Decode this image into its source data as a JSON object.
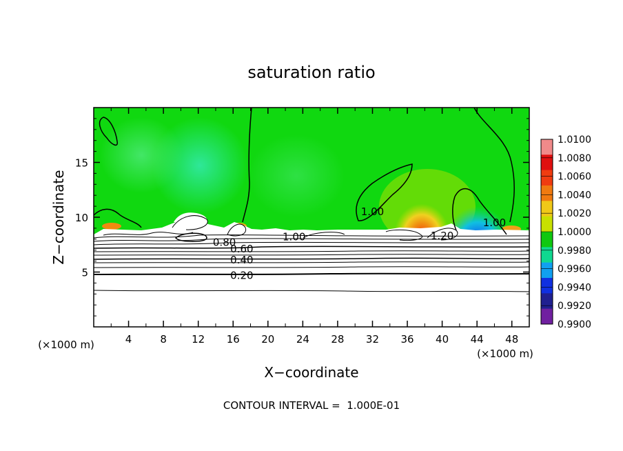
{
  "chart_data": {
    "type": "heatmap",
    "title": "saturation ratio",
    "xlabel": "X−coordinate",
    "ylabel": "Z−coordinate",
    "x_unit": "(×1000 m)",
    "x_unit_right": "(×1000 m)",
    "xlim": [
      0,
      50
    ],
    "ylim": [
      0,
      20
    ],
    "x_ticks": [
      {
        "v": 4,
        "label": "4"
      },
      {
        "v": 8,
        "label": "8"
      },
      {
        "v": 12,
        "label": "12"
      },
      {
        "v": 16,
        "label": "16"
      },
      {
        "v": 20,
        "label": "20"
      },
      {
        "v": 24,
        "label": "24"
      },
      {
        "v": 28,
        "label": "28"
      },
      {
        "v": 32,
        "label": "32"
      },
      {
        "v": 36,
        "label": "36"
      },
      {
        "v": 40,
        "label": "40"
      },
      {
        "v": 44,
        "label": "44"
      },
      {
        "v": 48,
        "label": "48"
      }
    ],
    "y_ticks": [
      {
        "v": 5,
        "label": "5"
      },
      {
        "v": 10,
        "label": "10"
      },
      {
        "v": 15,
        "label": "15"
      }
    ],
    "colorbar": {
      "min": 0.99,
      "max": 1.01,
      "levels": [
        "1.0100",
        "1.0080",
        "1.0060",
        "1.0040",
        "1.0020",
        "1.0000",
        "0.9980",
        "0.9960",
        "0.9940",
        "0.9920",
        "0.9900"
      ],
      "colors": [
        "#f08a8a",
        "#e01010",
        "#f03c10",
        "#f07a10",
        "#f0c818",
        "#c8e000",
        "#10c810",
        "#10d890",
        "#10a0f0",
        "#1030e0",
        "#202090",
        "#7020a0"
      ]
    },
    "contour_labels": [
      {
        "label": "0.20",
        "x": 17.0,
        "y": 4.7
      },
      {
        "label": "0.40",
        "x": 17.0,
        "y": 6.1
      },
      {
        "label": "0.60",
        "x": 17.0,
        "y": 7.1
      },
      {
        "label": "0.80",
        "x": 15.0,
        "y": 7.7
      },
      {
        "label": "1.00",
        "x": 23.0,
        "y": 8.2
      },
      {
        "label": "1.00",
        "x": 32.0,
        "y": 10.5
      },
      {
        "label": "1.00",
        "x": 46.0,
        "y": 9.5
      },
      {
        "label": "1.20",
        "x": 40.0,
        "y": 8.3
      }
    ],
    "footer": "CONTOUR INTERVAL =  1.000E-01"
  }
}
